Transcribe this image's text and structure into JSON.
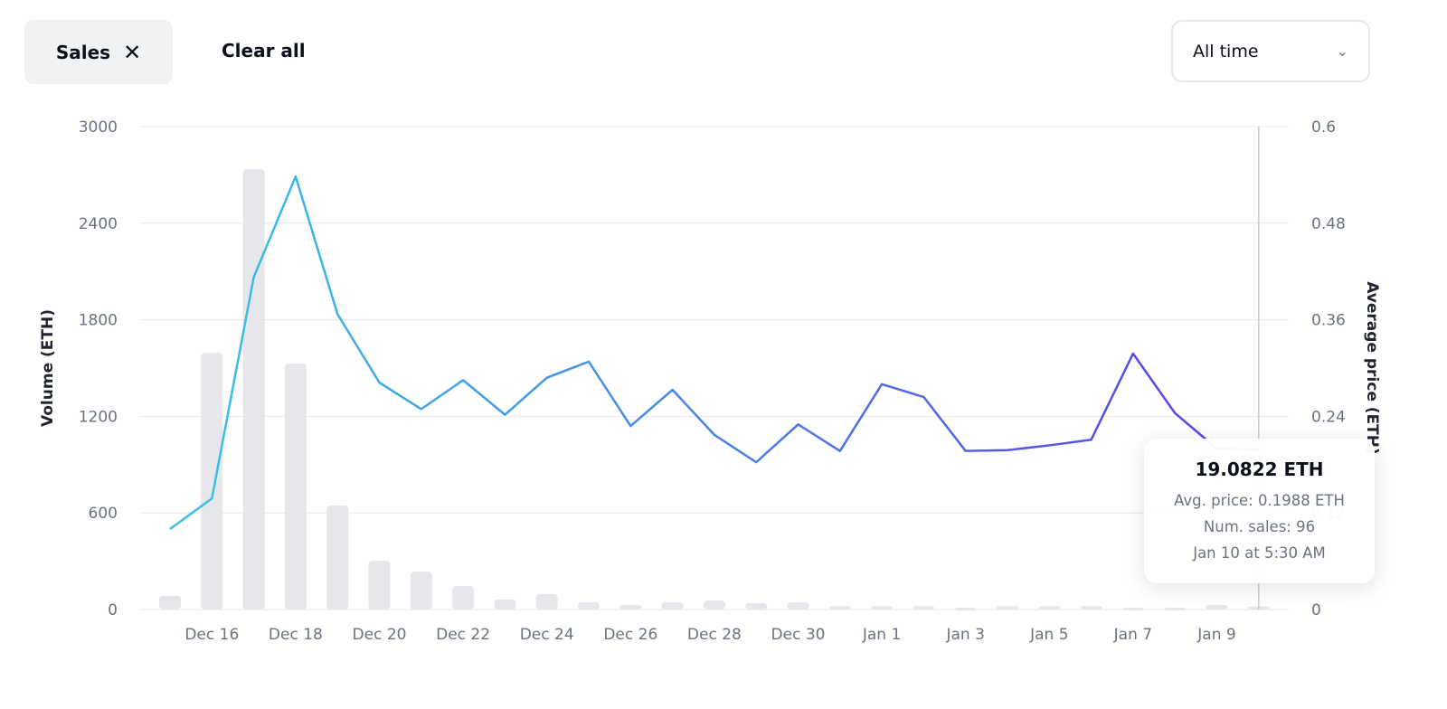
{
  "filters": {
    "chip_label": "Sales",
    "clear_label": "Clear all"
  },
  "range_select": {
    "value": "All time"
  },
  "tooltip": {
    "title": "19.0822 ETH",
    "avg_price": "Avg. price: 0.1988 ETH",
    "num_sales": "Num. sales: 96",
    "date": "Jan 10 at 5:30 AM"
  },
  "chart_data": {
    "type": "bar+line",
    "ylabel": "Volume (ETH)",
    "y2label": "Average price (ETH)",
    "ylim": [
      0,
      3000
    ],
    "y2lim": [
      0,
      0.6
    ],
    "yticks": [
      "0",
      "600",
      "1200",
      "1800",
      "2400",
      "3000"
    ],
    "y2ticks": [
      "0",
      "0.12",
      "0.24",
      "0.36",
      "0.48",
      "0.6"
    ],
    "grid": true,
    "x": [
      "Dec 15",
      "Dec 16",
      "Dec 17",
      "Dec 18",
      "Dec 19",
      "Dec 20",
      "Dec 21",
      "Dec 22",
      "Dec 23",
      "Dec 24",
      "Dec 25",
      "Dec 26",
      "Dec 27",
      "Dec 28",
      "Dec 29",
      "Dec 30",
      "Dec 31",
      "Jan 1",
      "Jan 2",
      "Jan 3",
      "Jan 4",
      "Jan 5",
      "Jan 6",
      "Jan 7",
      "Jan 8",
      "Jan 9",
      "Jan 10"
    ],
    "xticks": [
      "Dec 16",
      "Dec 18",
      "Dec 20",
      "Dec 22",
      "Dec 24",
      "Dec 26",
      "Dec 28",
      "Dec 30",
      "Jan 1",
      "Jan 3",
      "Jan 5",
      "Jan 7",
      "Jan 9"
    ],
    "volume": [
      85,
      1595,
      2736,
      1528,
      646,
      303,
      236,
      146,
      62,
      96,
      45,
      28,
      45,
      56,
      40,
      45,
      22,
      22,
      22,
      11,
      22,
      22,
      22,
      11,
      11,
      28,
      19.0822
    ],
    "avg_price": [
      0.1,
      0.138,
      0.413,
      0.538,
      0.367,
      0.282,
      0.249,
      0.285,
      0.242,
      0.288,
      0.308,
      0.228,
      0.273,
      0.217,
      0.183,
      0.23,
      0.197,
      0.28,
      0.264,
      0.197,
      0.198,
      0.204,
      0.211,
      0.318,
      0.244,
      0.2,
      0.1988
    ],
    "hover_index": 26,
    "colors": {
      "bar": "#e6e7ea",
      "line_start": "#36c5e8",
      "line_end": "#5b3de8",
      "grid": "#e5e7eb"
    }
  }
}
